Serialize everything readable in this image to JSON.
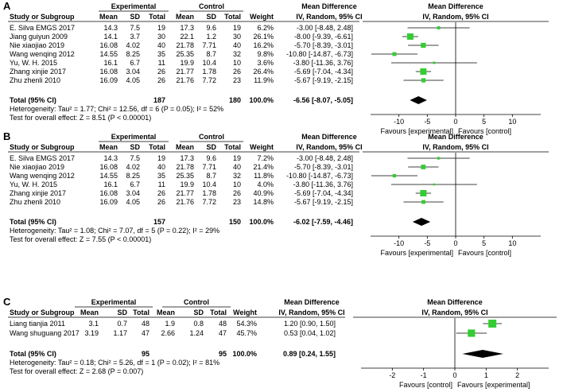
{
  "headers": {
    "study": "Study or Subgroup",
    "experimental": "Experimental",
    "control": "Control",
    "mean": "Mean",
    "sd": "SD",
    "total": "Total",
    "weight": "Weight",
    "md_title": "Mean Difference",
    "md_method": "IV, Random, 95% CI"
  },
  "colors": {
    "box": "#33cc33",
    "diamond": "#000000",
    "ci": "#000000"
  },
  "chart_data": [
    {
      "type": "forest",
      "panel_label": "A",
      "studies": [
        {
          "name": "E. Silva EMGS 2017",
          "e_mean": "14.3",
          "e_sd": "7.5",
          "e_total": "19",
          "c_mean": "17.3",
          "c_sd": "9.6",
          "c_total": "19",
          "weight": "6.2%",
          "ci_text": "-3.00 [-8.48, 2.48]",
          "md": -3.0,
          "lo": -8.48,
          "hi": 2.48,
          "w": 6.2
        },
        {
          "name": "Jiang guiyun 2009",
          "e_mean": "14.1",
          "e_sd": "3.7",
          "e_total": "30",
          "c_mean": "22.1",
          "c_sd": "1.2",
          "c_total": "30",
          "weight": "26.1%",
          "ci_text": "-8.00 [-9.39, -6.61]",
          "md": -8.0,
          "lo": -9.39,
          "hi": -6.61,
          "w": 26.1
        },
        {
          "name": "Nie xiaojiao 2019",
          "e_mean": "16.08",
          "e_sd": "4.02",
          "e_total": "40",
          "c_mean": "21.78",
          "c_sd": "7.71",
          "c_total": "40",
          "weight": "16.2%",
          "ci_text": "-5.70 [-8.39, -3.01]",
          "md": -5.7,
          "lo": -8.39,
          "hi": -3.01,
          "w": 16.2
        },
        {
          "name": "Wang wenqing 2012",
          "e_mean": "14.55",
          "e_sd": "8.25",
          "e_total": "35",
          "c_mean": "25.35",
          "c_sd": "8.7",
          "c_total": "32",
          "weight": "9.8%",
          "ci_text": "-10.80 [-14.87, -6.73]",
          "md": -10.8,
          "lo": -14.87,
          "hi": -6.73,
          "w": 9.8
        },
        {
          "name": "Yu, W. H. 2015",
          "e_mean": "16.1",
          "e_sd": "6.7",
          "e_total": "11",
          "c_mean": "19.9",
          "c_sd": "10.4",
          "c_total": "10",
          "weight": "3.6%",
          "ci_text": "-3.80 [-11.36, 3.76]",
          "md": -3.8,
          "lo": -11.36,
          "hi": 3.76,
          "w": 3.6
        },
        {
          "name": "Zhang xinjie 2017",
          "e_mean": "16.08",
          "e_sd": "3.04",
          "e_total": "26",
          "c_mean": "21.77",
          "c_sd": "1.78",
          "c_total": "26",
          "weight": "26.4%",
          "ci_text": "-5.69 [-7.04, -4.34]",
          "md": -5.69,
          "lo": -7.04,
          "hi": -4.34,
          "w": 26.4
        },
        {
          "name": "Zhu zhenli 2010",
          "e_mean": "16.09",
          "e_sd": "4.05",
          "e_total": "26",
          "c_mean": "21.76",
          "c_sd": "7.72",
          "c_total": "23",
          "weight": "11.9%",
          "ci_text": "-5.67 [-9.19, -2.15]",
          "md": -5.67,
          "lo": -9.19,
          "hi": -2.15,
          "w": 11.9
        }
      ],
      "total": {
        "label": "Total (95% CI)",
        "e_total": "187",
        "c_total": "180",
        "weight": "100.0%",
        "ci_text": "-6.56 [-8.07, -5.05]",
        "md": -6.56,
        "lo": -8.07,
        "hi": -5.05
      },
      "heterogeneity": "Heterogeneity: Tau² = 1.77; Chi² = 12.56, df = 6 (P = 0.05); I² = 52%",
      "overall_effect": "Test for overall effect: Z = 8.51 (P < 0.00001)",
      "axis": {
        "min": -15,
        "max": 15,
        "ticks": [
          -10,
          -5,
          0,
          5,
          10
        ],
        "tick_labels": [
          "-10",
          "-5",
          "0",
          "5",
          "10"
        ]
      },
      "favours_left": "Favours [experimental]",
      "favours_right": "Favours [control]"
    },
    {
      "type": "forest",
      "panel_label": "B",
      "studies": [
        {
          "name": "E. Silva EMGS 2017",
          "e_mean": "14.3",
          "e_sd": "7.5",
          "e_total": "19",
          "c_mean": "17.3",
          "c_sd": "9.6",
          "c_total": "19",
          "weight": "7.2%",
          "ci_text": "-3.00 [-8.48, 2.48]",
          "md": -3.0,
          "lo": -8.48,
          "hi": 2.48,
          "w": 7.2
        },
        {
          "name": "Nie xiaojiao 2019",
          "e_mean": "16.08",
          "e_sd": "4.02",
          "e_total": "40",
          "c_mean": "21.78",
          "c_sd": "7.71",
          "c_total": "40",
          "weight": "21.4%",
          "ci_text": "-5.70 [-8.39, -3.01]",
          "md": -5.7,
          "lo": -8.39,
          "hi": -3.01,
          "w": 21.4
        },
        {
          "name": "Wang wenqing 2012",
          "e_mean": "14.55",
          "e_sd": "8.25",
          "e_total": "35",
          "c_mean": "25.35",
          "c_sd": "8.7",
          "c_total": "32",
          "weight": "11.8%",
          "ci_text": "-10.80 [-14.87, -6.73]",
          "md": -10.8,
          "lo": -14.87,
          "hi": -6.73,
          "w": 11.8
        },
        {
          "name": "Yu, W. H. 2015",
          "e_mean": "16.1",
          "e_sd": "6.7",
          "e_total": "11",
          "c_mean": "19.9",
          "c_sd": "10.4",
          "c_total": "10",
          "weight": "4.0%",
          "ci_text": "-3.80 [-11.36, 3.76]",
          "md": -3.8,
          "lo": -11.36,
          "hi": 3.76,
          "w": 4.0
        },
        {
          "name": "Zhang xinjie 2017",
          "e_mean": "16.08",
          "e_sd": "3.04",
          "e_total": "26",
          "c_mean": "21.77",
          "c_sd": "1.78",
          "c_total": "26",
          "weight": "40.9%",
          "ci_text": "-5.69 [-7.04, -4.34]",
          "md": -5.69,
          "lo": -7.04,
          "hi": -4.34,
          "w": 40.9
        },
        {
          "name": "Zhu zhenli 2010",
          "e_mean": "16.09",
          "e_sd": "4.05",
          "e_total": "26",
          "c_mean": "21.76",
          "c_sd": "7.72",
          "c_total": "23",
          "weight": "14.8%",
          "ci_text": "-5.67 [-9.19, -2.15]",
          "md": -5.67,
          "lo": -9.19,
          "hi": -2.15,
          "w": 14.8
        }
      ],
      "total": {
        "label": "Total (95% CI)",
        "e_total": "157",
        "c_total": "150",
        "weight": "100.0%",
        "ci_text": "-6.02 [-7.59, -4.46]",
        "md": -6.02,
        "lo": -7.59,
        "hi": -4.46
      },
      "heterogeneity": "Heterogeneity: Tau² = 1.08; Chi² = 7.07, df = 5 (P = 0.22); I² = 29%",
      "overall_effect": "Test for overall effect: Z = 7.55 (P < 0.00001)",
      "axis": {
        "min": -15,
        "max": 15,
        "ticks": [
          -10,
          -5,
          0,
          5,
          10
        ],
        "tick_labels": [
          "-10",
          "-5",
          "0",
          "5",
          "10"
        ]
      },
      "favours_left": "Favours [experimental]",
      "favours_right": "Favours [control]"
    },
    {
      "type": "forest",
      "panel_label": "C",
      "studies": [
        {
          "name": "Liang tianjia 2011",
          "e_mean": "3.1",
          "e_sd": "0.7",
          "e_total": "48",
          "c_mean": "1.9",
          "c_sd": "0.8",
          "c_total": "48",
          "weight": "54.3%",
          "ci_text": "1.20 [0.90, 1.50]",
          "md": 1.2,
          "lo": 0.9,
          "hi": 1.5,
          "w": 54.3
        },
        {
          "name": "Wang shuguang 2017",
          "e_mean": "3.19",
          "e_sd": "1.17",
          "e_total": "47",
          "c_mean": "2.66",
          "c_sd": "1.24",
          "c_total": "47",
          "weight": "45.7%",
          "ci_text": "0.53 [0.04, 1.02]",
          "md": 0.53,
          "lo": 0.04,
          "hi": 1.02,
          "w": 45.7
        }
      ],
      "total": {
        "label": "Total (95% CI)",
        "e_total": "95",
        "c_total": "95",
        "weight": "100.0%",
        "ci_text": "0.89 [0.24, 1.55]",
        "md": 0.89,
        "lo": 0.24,
        "hi": 1.55
      },
      "heterogeneity": "Heterogeneity: Tau² = 0.18; Chi² = 5.26, df = 1 (P = 0.02); I² = 81%",
      "overall_effect": "Test for overall effect: Z = 2.68 (P = 0.007)",
      "axis": {
        "min": -3,
        "max": 3,
        "ticks": [
          -2,
          -1,
          0,
          1,
          2
        ],
        "tick_labels": [
          "-2",
          "-1",
          "0",
          "1",
          "2"
        ]
      },
      "favours_left": "Favours [control]",
      "favours_right": "Favours [experimental]"
    }
  ]
}
